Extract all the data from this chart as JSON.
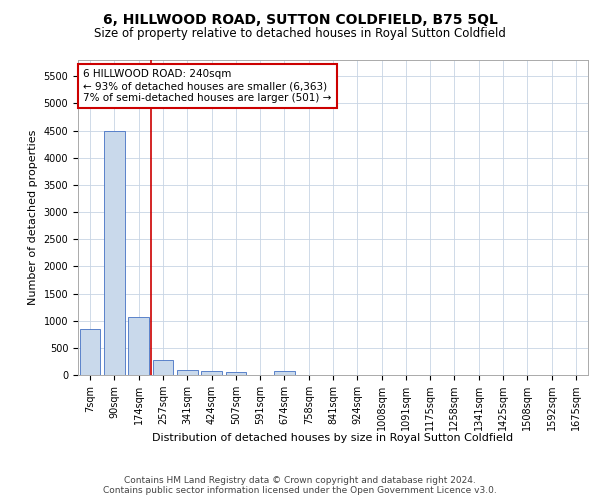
{
  "title": "6, HILLWOOD ROAD, SUTTON COLDFIELD, B75 5QL",
  "subtitle": "Size of property relative to detached houses in Royal Sutton Coldfield",
  "xlabel": "Distribution of detached houses by size in Royal Sutton Coldfield",
  "ylabel": "Number of detached properties",
  "footer_line1": "Contains HM Land Registry data © Crown copyright and database right 2024.",
  "footer_line2": "Contains public sector information licensed under the Open Government Licence v3.0.",
  "annotation_line1": "6 HILLWOOD ROAD: 240sqm",
  "annotation_line2": "← 93% of detached houses are smaller (6,363)",
  "annotation_line3": "7% of semi-detached houses are larger (501) →",
  "property_size": 240,
  "property_bin_index": 3,
  "categories": [
    "7sqm",
    "90sqm",
    "174sqm",
    "257sqm",
    "341sqm",
    "424sqm",
    "507sqm",
    "591sqm",
    "674sqm",
    "758sqm",
    "841sqm",
    "924sqm",
    "1008sqm",
    "1091sqm",
    "1175sqm",
    "1258sqm",
    "1341sqm",
    "1425sqm",
    "1508sqm",
    "1592sqm",
    "1675sqm"
  ],
  "values": [
    850,
    4500,
    1075,
    285,
    90,
    75,
    50,
    0,
    65,
    0,
    0,
    0,
    0,
    0,
    0,
    0,
    0,
    0,
    0,
    0,
    0
  ],
  "bar_color": "#c9d9eb",
  "bar_edge_color": "#4472c4",
  "grid_color": "#c8d4e4",
  "background_color": "#ffffff",
  "annotation_box_color": "#ffffff",
  "annotation_box_edge_color": "#cc0000",
  "vline_color": "#cc0000",
  "ylim": [
    0,
    5800
  ],
  "yticks": [
    0,
    500,
    1000,
    1500,
    2000,
    2500,
    3000,
    3500,
    4000,
    4500,
    5000,
    5500
  ],
  "title_fontsize": 10,
  "subtitle_fontsize": 8.5,
  "xlabel_fontsize": 8,
  "ylabel_fontsize": 8,
  "tick_fontsize": 7,
  "footer_fontsize": 6.5,
  "annotation_fontsize": 7.5
}
